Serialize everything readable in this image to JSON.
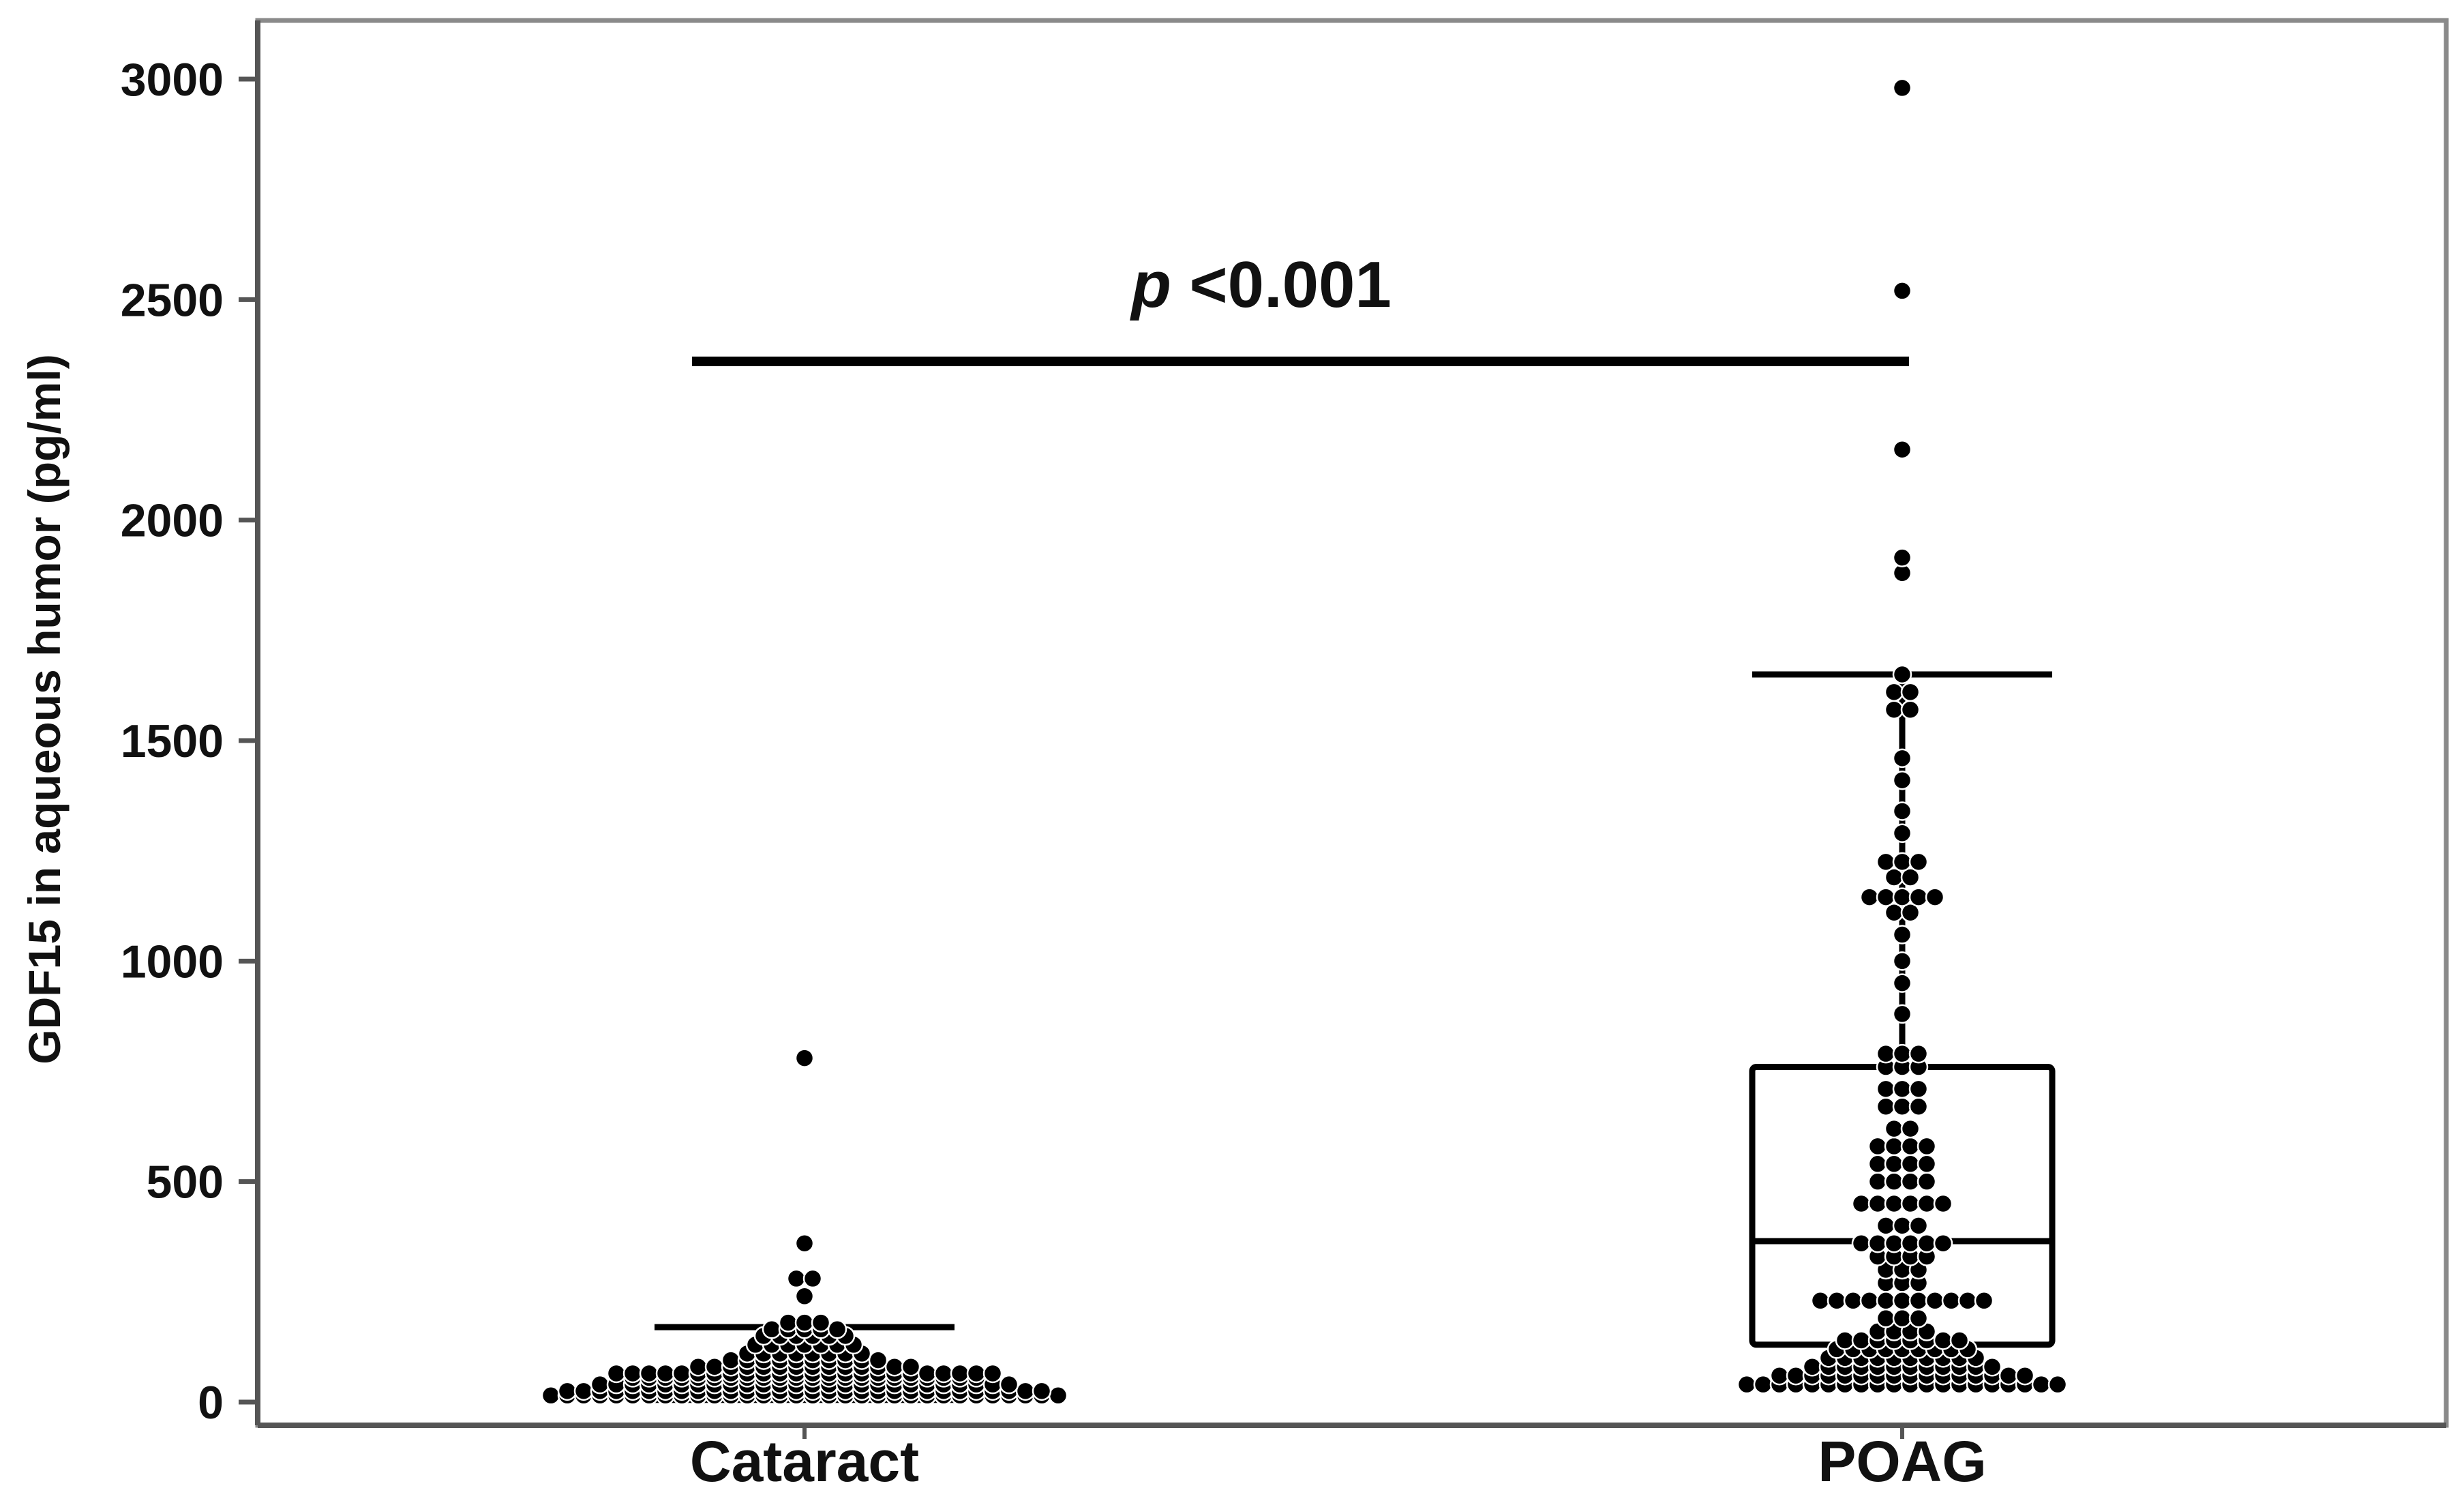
{
  "chart_data": {
    "type": "box-swarm",
    "title": "",
    "xlabel": "",
    "ylabel": "GDF15 in aqueous humor (pg/ml)",
    "ylim": [
      -40,
      3130
    ],
    "yticks": [
      0,
      500,
      1000,
      1500,
      2000,
      2500,
      3000
    ],
    "grid": false,
    "legend": "none",
    "categories": [
      "Cataract",
      "POAG"
    ],
    "annotation": {
      "prefix": "p",
      "text": " <0.001",
      "from": "Cataract",
      "to": "POAG",
      "y": 2360
    },
    "series": [
      {
        "category": "Cataract",
        "box": {
          "q1": 10,
          "median": 25,
          "q3": 65,
          "whisker_low": 5,
          "whisker_high": 170
        },
        "points": [
          {
            "y": 15,
            "n": 32
          },
          {
            "y": 25,
            "n": 30
          },
          {
            "y": 40,
            "n": 26
          },
          {
            "y": 55,
            "n": 22
          },
          {
            "y": 65,
            "n": 24
          },
          {
            "y": 80,
            "n": 14
          },
          {
            "y": 95,
            "n": 10
          },
          {
            "y": 110,
            "n": 8
          },
          {
            "y": 130,
            "n": 7
          },
          {
            "y": 150,
            "n": 6
          },
          {
            "y": 165,
            "n": 5
          },
          {
            "y": 180,
            "n": 3
          },
          {
            "y": 240,
            "n": 1
          },
          {
            "y": 280,
            "n": 2
          },
          {
            "y": 360,
            "n": 1
          },
          {
            "y": 780,
            "n": 1
          }
        ]
      },
      {
        "category": "POAG",
        "box": {
          "q1": 130,
          "median": 365,
          "q3": 760,
          "whisker_low": 40,
          "whisker_high": 1650
        },
        "points": [
          {
            "y": 40,
            "n": 20
          },
          {
            "y": 60,
            "n": 16
          },
          {
            "y": 80,
            "n": 12
          },
          {
            "y": 100,
            "n": 10
          },
          {
            "y": 120,
            "n": 9
          },
          {
            "y": 140,
            "n": 8
          },
          {
            "y": 160,
            "n": 4
          },
          {
            "y": 190,
            "n": 3
          },
          {
            "y": 230,
            "n": 11
          },
          {
            "y": 270,
            "n": 3
          },
          {
            "y": 300,
            "n": 3
          },
          {
            "y": 330,
            "n": 4
          },
          {
            "y": 360,
            "n": 6
          },
          {
            "y": 400,
            "n": 3
          },
          {
            "y": 450,
            "n": 6
          },
          {
            "y": 500,
            "n": 4
          },
          {
            "y": 540,
            "n": 4
          },
          {
            "y": 580,
            "n": 4
          },
          {
            "y": 620,
            "n": 2
          },
          {
            "y": 670,
            "n": 3
          },
          {
            "y": 710,
            "n": 3
          },
          {
            "y": 760,
            "n": 3
          },
          {
            "y": 790,
            "n": 3
          },
          {
            "y": 880,
            "n": 1
          },
          {
            "y": 950,
            "n": 1
          },
          {
            "y": 1000,
            "n": 1
          },
          {
            "y": 1060,
            "n": 1
          },
          {
            "y": 1110,
            "n": 2
          },
          {
            "y": 1145,
            "n": 5
          },
          {
            "y": 1190,
            "n": 2
          },
          {
            "y": 1225,
            "n": 3
          },
          {
            "y": 1290,
            "n": 1
          },
          {
            "y": 1340,
            "n": 1
          },
          {
            "y": 1410,
            "n": 1
          },
          {
            "y": 1460,
            "n": 1
          },
          {
            "y": 1570,
            "n": 2
          },
          {
            "y": 1610,
            "n": 2
          },
          {
            "y": 1650,
            "n": 1
          },
          {
            "y": 1880,
            "n": 1
          },
          {
            "y": 1915,
            "n": 1
          },
          {
            "y": 2160,
            "n": 1
          },
          {
            "y": 2520,
            "n": 1
          },
          {
            "y": 2980,
            "n": 1
          }
        ]
      }
    ]
  }
}
